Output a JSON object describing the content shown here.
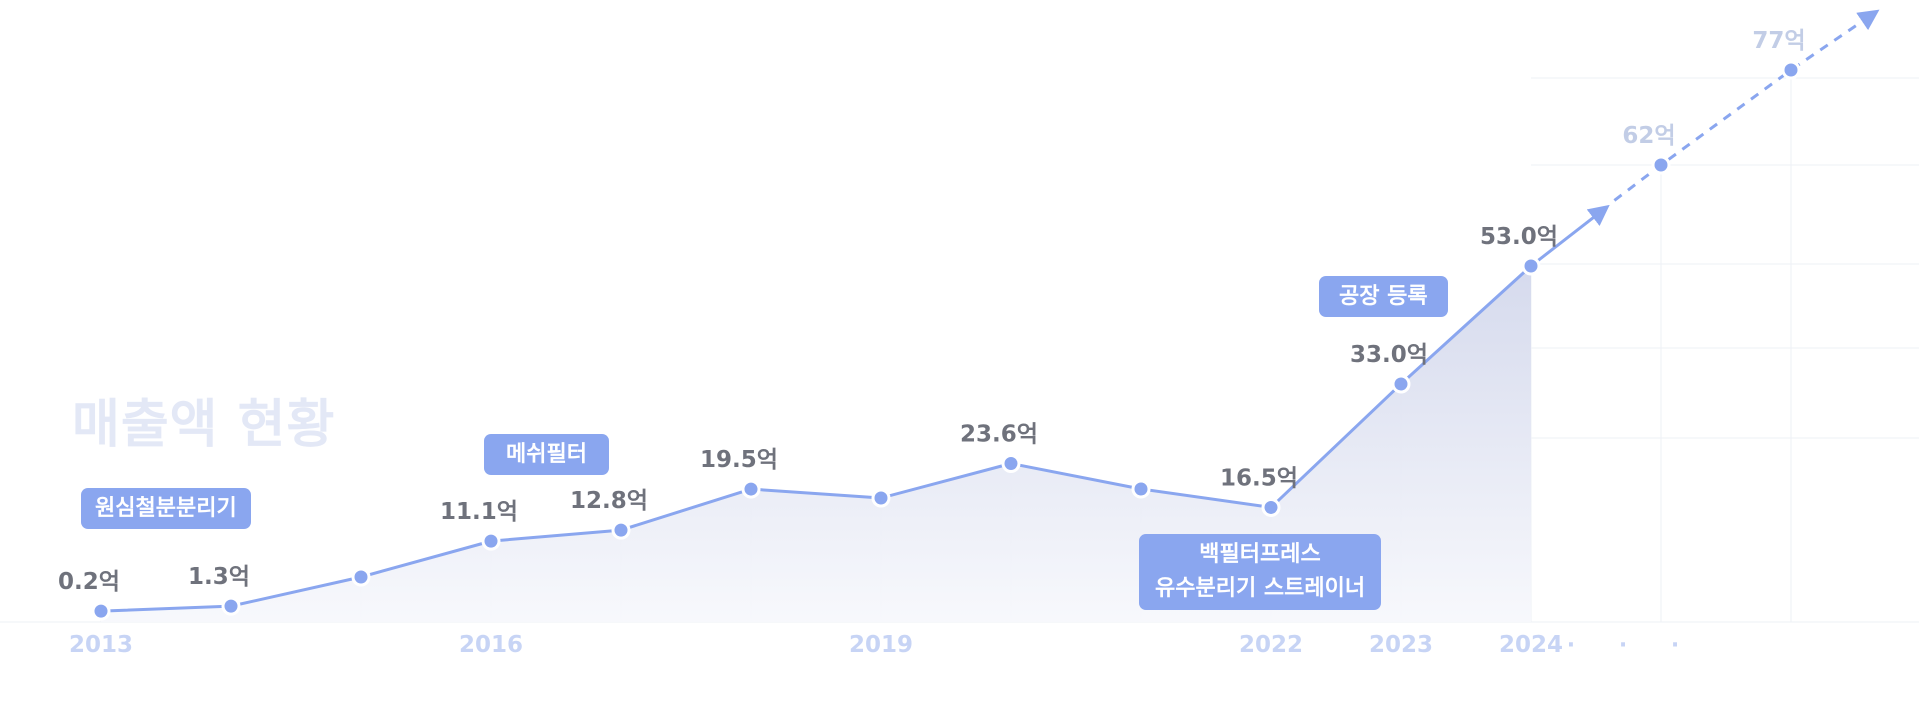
{
  "chart_data": {
    "type": "line",
    "x_labels": [
      "2013",
      "",
      "",
      "2016",
      "",
      "",
      "2019",
      "",
      "",
      "2022",
      "2023",
      "2024",
      "",
      ""
    ],
    "values": [
      0.2,
      1.3,
      null,
      11.1,
      12.8,
      19.5,
      null,
      23.6,
      null,
      16.5,
      33.0,
      53.0,
      62,
      77
    ],
    "value_labels": [
      "0.2억",
      "1.3억",
      "",
      "11.1억",
      "12.8억",
      "19.5억",
      "",
      "23.6억",
      "",
      "16.5억",
      "33.0억",
      "53.0억",
      "62억",
      "77억"
    ],
    "projected_from_index": 11,
    "axis_ellipsis": "· · ·",
    "grid": true
  },
  "title": "매출액 현황",
  "milestones": [
    {
      "lines": [
        "원심철분분리기"
      ]
    },
    {
      "lines": [
        "메쉬필터"
      ]
    },
    {
      "lines": [
        "백필터프레스",
        "유수분리기 스트레이너"
      ]
    },
    {
      "lines": [
        "공장 등록"
      ]
    }
  ],
  "colors": {
    "line": "#8aa6ef",
    "point": "#8aa6ef",
    "value_label": "#6f727c",
    "projected_label": "#c2cde6",
    "axis_label": "#c7d4f5",
    "grid": "#eef0f6",
    "area_top": "#d3d8ec",
    "area_bottom": "#f7f8fc"
  }
}
